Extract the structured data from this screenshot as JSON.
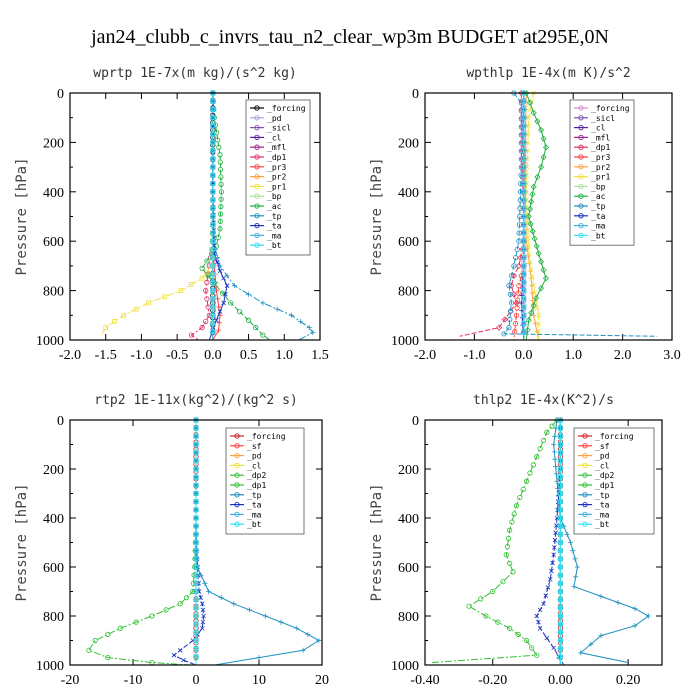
{
  "title": "jan24_clubb_c_invrs_tau_n2_clear_wp3m  BUDGET at295E,0N",
  "chart_data": [
    {
      "type": "line",
      "title": "wprtp  1E-7x(m kg)/(s^2 kg)",
      "ylabel": "Pressure [hPa]",
      "xlim": [
        -2.0,
        1.5
      ],
      "ylim": [
        1000,
        0
      ],
      "xticks": [
        "-2.0",
        "-1.5",
        "-1.0",
        "-0.5",
        "0.0",
        "0.5",
        "1.0",
        "1.5"
      ],
      "xtick_values": [
        -2.0,
        -1.5,
        -1.0,
        -0.5,
        0.0,
        0.5,
        1.0,
        1.5
      ],
      "yticks": [
        0,
        200,
        400,
        600,
        800,
        1000
      ],
      "legend_position": "top-right",
      "series": [
        {
          "name": "_forcing",
          "color": "#000000",
          "x": [
            0.0,
            0.0,
            0.0,
            0.0,
            0.0,
            0.0,
            0.0
          ],
          "y": [
            0,
            150,
            300,
            500,
            700,
            850,
            1000
          ]
        },
        {
          "name": "_pd",
          "color": "#b0a0e0",
          "x": [
            0.0,
            0.0,
            0.0
          ],
          "y": [
            0,
            500,
            1000
          ]
        },
        {
          "name": "_sicl",
          "color": "#8050b0",
          "x": [
            0.0,
            0.0,
            0.0
          ],
          "y": [
            0,
            500,
            1000
          ]
        },
        {
          "name": "_cl",
          "color": "#5020a0",
          "x": [
            0.0,
            0.0,
            0.0
          ],
          "y": [
            0,
            500,
            1000
          ]
        },
        {
          "name": "_mfl",
          "color": "#a0208a",
          "x": [
            0.0,
            0.0,
            0.0
          ],
          "y": [
            0,
            500,
            1000
          ]
        },
        {
          "name": "_dp1",
          "color": "#e03060",
          "x": [
            0.0,
            0.0,
            0.0,
            -0.05,
            -0.1,
            -0.05,
            -0.15,
            -0.3,
            -0.2
          ],
          "y": [
            0,
            300,
            600,
            700,
            800,
            900,
            950,
            980,
            1000
          ]
        },
        {
          "name": "_pr3",
          "color": "#ff4040",
          "x": [
            0.0,
            0.0,
            0.0,
            0.02,
            0.05,
            0.1,
            0.08,
            0.0
          ],
          "y": [
            0,
            300,
            600,
            700,
            800,
            900,
            960,
            1000
          ]
        },
        {
          "name": "_pr2",
          "color": "#ffa040",
          "x": [
            0.0,
            0.0,
            0.0,
            0.0,
            0.0
          ],
          "y": [
            0,
            300,
            600,
            800,
            1000
          ]
        },
        {
          "name": "_pr1",
          "color": "#f0e040",
          "x": [
            0.0,
            0.0,
            -0.02,
            -0.15,
            -0.45,
            -0.9,
            -1.25,
            -1.5,
            -1.55
          ],
          "y": [
            0,
            500,
            700,
            750,
            800,
            850,
            900,
            950,
            975
          ]
        },
        {
          "name": "_bp",
          "color": "#b0e0a0",
          "x": [
            0.0,
            0.0,
            0.0,
            0.0
          ],
          "y": [
            0,
            400,
            700,
            1000
          ]
        },
        {
          "name": "_ac",
          "color": "#20b040",
          "x": [
            0.0,
            0.02,
            0.1,
            0.12,
            0.1,
            0.05,
            -0.15,
            0.02,
            0.25,
            0.5,
            0.7,
            0.8
          ],
          "y": [
            0,
            100,
            250,
            400,
            550,
            620,
            710,
            770,
            850,
            920,
            980,
            1000
          ]
        },
        {
          "name": "_tp",
          "color": "#2090c0",
          "x": [
            0.0,
            0.0,
            0.0,
            0.1,
            0.3,
            0.7,
            1.1,
            1.35,
            1.4,
            1.2
          ],
          "y": [
            0,
            300,
            600,
            700,
            780,
            850,
            900,
            950,
            970,
            1000
          ]
        },
        {
          "name": "_ta",
          "color": "#1830c0",
          "x": [
            0.0,
            0.0,
            0.02,
            0.1,
            0.2,
            0.15,
            0.05,
            -0.05
          ],
          "y": [
            0,
            400,
            650,
            720,
            780,
            850,
            920,
            1000
          ]
        },
        {
          "name": "_ma",
          "color": "#40b0e0",
          "x": [
            0.0,
            0.0,
            0.0
          ],
          "y": [
            0,
            500,
            1000
          ]
        },
        {
          "name": "_bt",
          "color": "#30e0f0",
          "x": [
            0.0,
            0.0,
            0.0
          ],
          "y": [
            0,
            500,
            1000
          ]
        }
      ]
    },
    {
      "type": "line",
      "title": "wpthlp  1E-4x(m K)/s^2",
      "ylabel": "Pressure [hPa]",
      "xlim": [
        -2.0,
        3.0
      ],
      "ylim": [
        1000,
        0
      ],
      "xticks": [
        "-2.0",
        "-1.0",
        "0.0",
        "1.0",
        "2.0",
        "3.0"
      ],
      "xtick_values": [
        -2.0,
        -1.0,
        0.0,
        1.0,
        2.0,
        3.0
      ],
      "yticks": [
        0,
        200,
        400,
        600,
        800,
        1000
      ],
      "legend_position": "top-right",
      "series": [
        {
          "name": "_forcing",
          "color": "#d090d0",
          "x": [
            0.0,
            0.0,
            0.0,
            0.0,
            0.0
          ],
          "y": [
            0,
            250,
            500,
            750,
            1000
          ]
        },
        {
          "name": "_sicl",
          "color": "#8050b0",
          "x": [
            0.0,
            0.0,
            0.0
          ],
          "y": [
            0,
            500,
            1000
          ]
        },
        {
          "name": "_cl",
          "color": "#5020a0",
          "x": [
            0.0,
            0.0,
            0.0
          ],
          "y": [
            0,
            500,
            1000
          ]
        },
        {
          "name": "_mfl",
          "color": "#a0208a",
          "x": [
            0.0,
            0.0,
            0.0
          ],
          "y": [
            0,
            500,
            1000
          ]
        },
        {
          "name": "_dp1",
          "color": "#e03060",
          "x": [
            -0.05,
            -0.03,
            0.0,
            -0.1,
            -0.2,
            -0.25,
            -0.15,
            -0.5,
            -1.3
          ],
          "y": [
            0,
            200,
            600,
            700,
            740,
            780,
            850,
            950,
            985
          ]
        },
        {
          "name": "_pr3",
          "color": "#ff4040",
          "x": [
            0.0,
            0.0,
            0.0,
            -0.1,
            -0.15,
            -0.2
          ],
          "y": [
            0,
            400,
            700,
            780,
            900,
            1000
          ]
        },
        {
          "name": "_pr2",
          "color": "#ffa040",
          "x": [
            0.05,
            0.02,
            0.05,
            0.15,
            0.2,
            0.3
          ],
          "y": [
            0,
            300,
            600,
            750,
            900,
            1000
          ]
        },
        {
          "name": "_pr1",
          "color": "#f0e040",
          "x": [
            0.2,
            0.1,
            0.05,
            0.1,
            0.2,
            0.3,
            0.3
          ],
          "y": [
            0,
            100,
            400,
            650,
            780,
            900,
            1000
          ]
        },
        {
          "name": "_bp",
          "color": "#b0e0a0",
          "x": [
            0.0,
            0.0,
            0.0
          ],
          "y": [
            0,
            500,
            1000
          ]
        },
        {
          "name": "_ac",
          "color": "#20b040",
          "x": [
            0.05,
            0.2,
            0.35,
            0.45,
            0.35,
            0.2,
            0.1,
            0.3,
            0.45,
            0.25,
            0.1,
            0.05
          ],
          "y": [
            0,
            80,
            150,
            220,
            300,
            380,
            500,
            650,
            750,
            830,
            920,
            1000
          ]
        },
        {
          "name": "_tp",
          "color": "#2090c0",
          "x": [
            -0.2,
            -0.05,
            -0.05,
            -0.1,
            -0.2,
            -0.3,
            -0.25,
            -0.3,
            -0.4,
            2.7
          ],
          "y": [
            0,
            40,
            300,
            600,
            700,
            780,
            850,
            950,
            975,
            985
          ]
        },
        {
          "name": "_ta",
          "color": "#1830c0",
          "x": [
            0.0,
            0.0,
            0.0,
            -0.05,
            0.0
          ],
          "y": [
            0,
            400,
            700,
            850,
            1000
          ]
        },
        {
          "name": "_ma",
          "color": "#40b0e0",
          "x": [
            0.0,
            0.0,
            0.0
          ],
          "y": [
            0,
            500,
            1000
          ]
        },
        {
          "name": "_bt",
          "color": "#30e0f0",
          "x": [
            0.0,
            0.0,
            0.0
          ],
          "y": [
            0,
            500,
            1000
          ]
        }
      ]
    },
    {
      "type": "line",
      "title": "rtp2  1E-11x(kg^2)/(kg^2 s)",
      "ylabel": "Pressure [hPa]",
      "xlim": [
        -20,
        20
      ],
      "ylim": [
        1000,
        0
      ],
      "xticks": [
        "-20",
        "-10",
        "0",
        "10",
        "20"
      ],
      "xtick_values": [
        -20,
        -10,
        0,
        10,
        20
      ],
      "yticks": [
        0,
        200,
        400,
        600,
        800,
        1000
      ],
      "legend_position": "top-right",
      "series": [
        {
          "name": "_forcing",
          "color": "#cc2020",
          "x": [
            0.0,
            0.0,
            0.0,
            0.0,
            0.0,
            0.0,
            0.0
          ],
          "y": [
            0,
            150,
            300,
            500,
            700,
            850,
            1000
          ]
        },
        {
          "name": "_sf",
          "color": "#ff4040",
          "x": [
            0.0,
            0.0,
            0.0
          ],
          "y": [
            0,
            500,
            1000
          ]
        },
        {
          "name": "_pd",
          "color": "#ffa040",
          "x": [
            0.0,
            0.0,
            0.0
          ],
          "y": [
            0,
            500,
            1000
          ]
        },
        {
          "name": "_cl",
          "color": "#f0e040",
          "x": [
            0.0,
            0.0,
            0.0
          ],
          "y": [
            0,
            500,
            1000
          ]
        },
        {
          "name": "_dp2",
          "color": "#40c040",
          "x": [
            0.0,
            0.0,
            0.0
          ],
          "y": [
            0,
            500,
            1000
          ]
        },
        {
          "name": "_dp1",
          "color": "#30c030",
          "x": [
            0.0,
            0.0,
            -0.2,
            -0.5,
            -2.5,
            -7.0,
            -12.0,
            -16.0,
            -17.0,
            -14.0,
            -7.0,
            -1.0
          ],
          "y": [
            0,
            400,
            600,
            700,
            750,
            800,
            850,
            900,
            940,
            970,
            990,
            1000
          ]
        },
        {
          "name": "_tp",
          "color": "#2090c0",
          "x": [
            0.0,
            0.0,
            0.2,
            2.0,
            6.0,
            11.0,
            16.0,
            19.5,
            17.0,
            10.0,
            3.0
          ],
          "y": [
            0,
            400,
            600,
            700,
            750,
            800,
            850,
            900,
            940,
            970,
            1000
          ]
        },
        {
          "name": "_ta",
          "color": "#1830c0",
          "x": [
            0.0,
            0.0,
            0.5,
            1.0,
            1.2,
            1.0,
            -0.5,
            -2.5,
            -3.5,
            -2.0,
            0.0
          ],
          "y": [
            0,
            500,
            700,
            750,
            800,
            850,
            900,
            940,
            960,
            980,
            1000
          ]
        },
        {
          "name": "_ma",
          "color": "#40b0e0",
          "x": [
            0.0,
            0.0,
            0.0
          ],
          "y": [
            0,
            500,
            1000
          ]
        },
        {
          "name": "_bt",
          "color": "#30e0f0",
          "x": [
            0.0,
            0.0,
            0.0
          ],
          "y": [
            0,
            500,
            1000
          ]
        }
      ]
    },
    {
      "type": "line",
      "title": "thlp2  1E-4x(K^2)/s",
      "ylabel": "Pressure [hPa]",
      "xlim": [
        -0.4,
        0.3
      ],
      "ylim": [
        1000,
        0
      ],
      "xticks": [
        "-0.40",
        "-0.20",
        "0.00",
        "0.20"
      ],
      "xtick_values": [
        -0.4,
        -0.2,
        0.0,
        0.2
      ],
      "yticks": [
        0,
        200,
        400,
        600,
        800,
        1000
      ],
      "legend_position": "top-right",
      "series": [
        {
          "name": "_forcing",
          "color": "#cc2020",
          "x": [
            0.0,
            0.0,
            0.0,
            0.0,
            0.0,
            0.0,
            0.0
          ],
          "y": [
            0,
            150,
            300,
            500,
            700,
            850,
            1000
          ]
        },
        {
          "name": "_sf",
          "color": "#ff4040",
          "x": [
            0.0,
            0.0,
            0.0
          ],
          "y": [
            0,
            500,
            1000
          ]
        },
        {
          "name": "_pd",
          "color": "#ffa040",
          "x": [
            0.0,
            0.0,
            0.0
          ],
          "y": [
            0,
            500,
            1000
          ]
        },
        {
          "name": "_cl",
          "color": "#f0e040",
          "x": [
            0.0,
            0.0,
            0.0
          ],
          "y": [
            0,
            500,
            1000
          ]
        },
        {
          "name": "_dp2",
          "color": "#40c040",
          "x": [
            0.0,
            0.0,
            0.0
          ],
          "y": [
            0,
            500,
            1000
          ]
        },
        {
          "name": "_dp1",
          "color": "#30c030",
          "x": [
            -0.01,
            -0.04,
            -0.07,
            -0.1,
            -0.13,
            -0.15,
            -0.16,
            -0.14,
            -0.2,
            -0.27,
            -0.22,
            -0.15,
            -0.1,
            -0.07,
            -0.38
          ],
          "y": [
            0,
            50,
            150,
            250,
            350,
            450,
            550,
            620,
            700,
            760,
            800,
            850,
            900,
            960,
            990
          ]
        },
        {
          "name": "_tp",
          "color": "#2090c0",
          "x": [
            -0.01,
            -0.02,
            -0.01,
            0.0,
            0.03,
            0.05,
            0.04,
            0.12,
            0.22,
            0.26,
            0.22,
            0.12,
            0.06,
            0.2
          ],
          "y": [
            0,
            100,
            250,
            400,
            500,
            600,
            680,
            720,
            770,
            800,
            840,
            880,
            950,
            990
          ]
        },
        {
          "name": "_ta",
          "color": "#1830c0",
          "x": [
            0.0,
            0.0,
            -0.01,
            -0.02,
            -0.03,
            -0.05,
            -0.07,
            -0.06,
            -0.02,
            0.01
          ],
          "y": [
            0,
            200,
            400,
            550,
            650,
            750,
            800,
            850,
            930,
            1000
          ]
        },
        {
          "name": "_ma",
          "color": "#40b0e0",
          "x": [
            0.0,
            0.0,
            0.0
          ],
          "y": [
            0,
            500,
            1000
          ]
        },
        {
          "name": "_bt",
          "color": "#30e0f0",
          "x": [
            0.0,
            0.0,
            0.0
          ],
          "y": [
            0,
            500,
            1000
          ]
        }
      ]
    }
  ]
}
